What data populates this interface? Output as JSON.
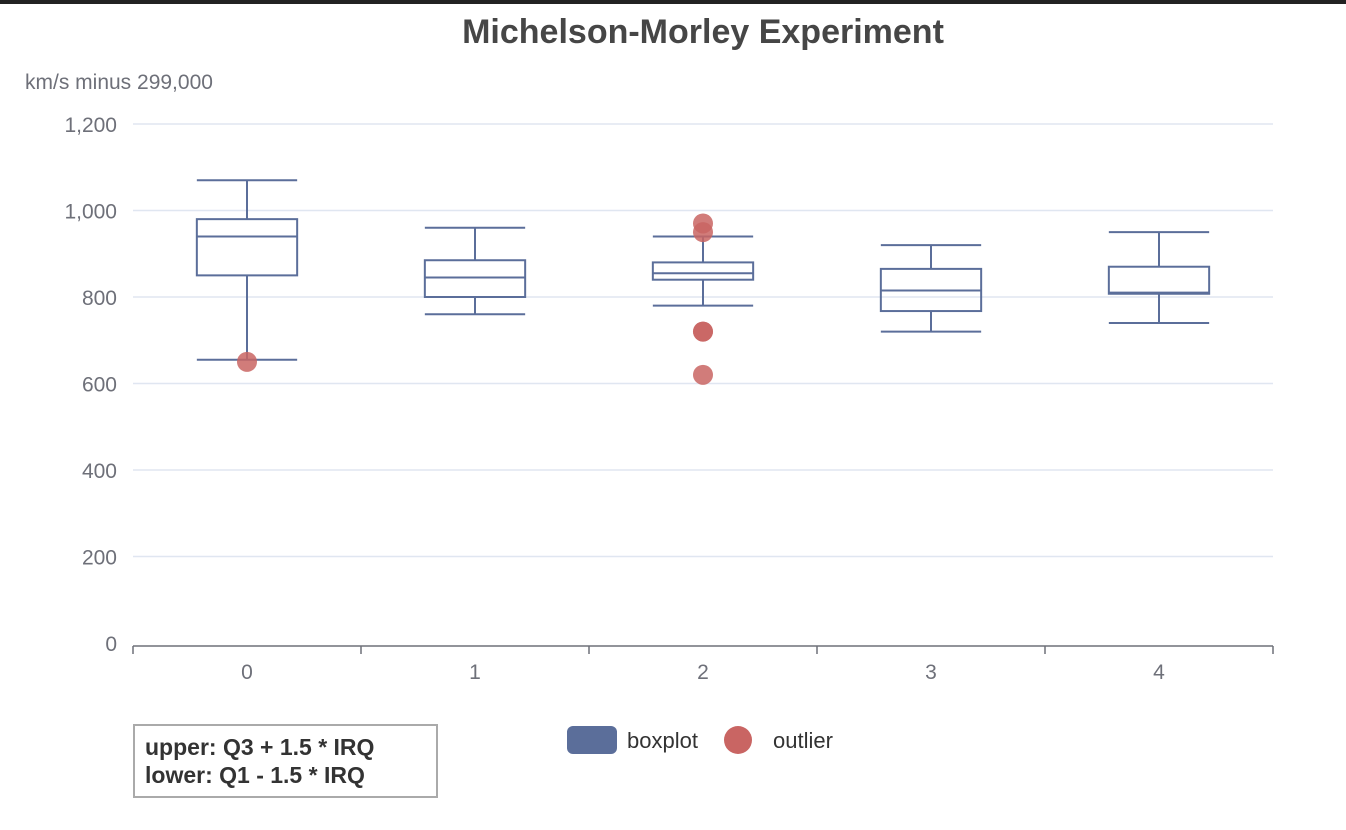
{
  "chart_data": {
    "type": "boxplot",
    "title": "Michelson-Morley Experiment",
    "xlabel": "",
    "ylabel": "km/s minus 299,000",
    "categories": [
      "0",
      "1",
      "2",
      "3",
      "4"
    ],
    "ylim": [
      0,
      1200
    ],
    "yticks": [
      0,
      200,
      400,
      600,
      800,
      1000,
      1200
    ],
    "ytick_labels": [
      "0",
      "200",
      "400",
      "600",
      "800",
      "1,000",
      "1,200"
    ],
    "grid": true,
    "legend_position": "bottom-center",
    "series": [
      {
        "name": "boxplot",
        "color": "#5b6e9a",
        "values": [
          [
            655,
            850,
            940,
            980,
            1070
          ],
          [
            760,
            800,
            845,
            885,
            960
          ],
          [
            780,
            840,
            855,
            880,
            940
          ],
          [
            720,
            767.5,
            815,
            865,
            920
          ],
          [
            740,
            807.5,
            810,
            870,
            950
          ]
        ]
      },
      {
        "name": "outlier",
        "color": "#c96563",
        "points": [
          [
            0,
            650
          ],
          [
            2,
            620
          ],
          [
            2,
            720
          ],
          [
            2,
            720
          ],
          [
            2,
            950
          ],
          [
            2,
            970
          ]
        ]
      }
    ]
  },
  "note": {
    "line1": "upper: Q3 + 1.5 * IRQ",
    "line2": "lower: Q1 - 1.5 * IRQ"
  }
}
